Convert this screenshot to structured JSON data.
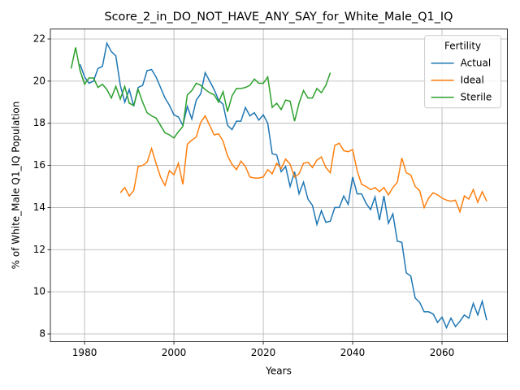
{
  "chart_data": {
    "type": "line",
    "title": "Score_2_in_DO_NOT_HAVE_ANY_SAY_for_White_Male_Q1_IQ",
    "xlabel": "Years",
    "ylabel": "% of White_Male Q1_IQ Population",
    "legend_title": "Fertility",
    "legend": "upper right",
    "grid": true,
    "x": [
      1977,
      1978,
      1979,
      1980,
      1981,
      1982,
      1983,
      1984,
      1985,
      1986,
      1987,
      1988,
      1989,
      1990,
      1991,
      1992,
      1993,
      1994,
      1995,
      1996,
      1997,
      1998,
      1999,
      2000,
      2001,
      2002,
      2003,
      2004,
      2005,
      2006,
      2007,
      2008,
      2009,
      2010,
      2011,
      2012,
      2013,
      2014,
      2015,
      2016,
      2017,
      2018,
      2019,
      2020,
      2021,
      2022,
      2023,
      2024,
      2025,
      2026,
      2027,
      2028,
      2029,
      2030,
      2031,
      2032,
      2033,
      2034,
      2035,
      2036,
      2037,
      2038,
      2039,
      2040,
      2041,
      2042,
      2043,
      2044,
      2045,
      2046,
      2047,
      2048,
      2049,
      2050,
      2051,
      2052,
      2053,
      2054,
      2055,
      2056,
      2057,
      2058,
      2059,
      2060,
      2061,
      2062,
      2063,
      2064,
      2065,
      2066,
      2067,
      2068,
      2069,
      2070
    ],
    "series": [
      {
        "name": "Actual",
        "color": "#1f77b4",
        "values": [
          null,
          null,
          20.8,
          20.2,
          19.9,
          20.0,
          20.6,
          20.7,
          21.8,
          21.4,
          21.2,
          19.8,
          19.0,
          19.6,
          18.8,
          19.7,
          19.8,
          20.5,
          20.55,
          20.2,
          19.7,
          19.2,
          18.85,
          18.4,
          18.3,
          17.9,
          18.8,
          18.2,
          19.1,
          19.4,
          20.4,
          20.0,
          19.6,
          19.1,
          18.9,
          17.9,
          17.7,
          18.1,
          18.1,
          18.75,
          18.35,
          18.5,
          18.15,
          18.4,
          18.0,
          16.55,
          16.5,
          15.7,
          15.95,
          15.0,
          15.7,
          14.65,
          15.2,
          14.4,
          14.1,
          13.2,
          13.85,
          13.3,
          13.35,
          14.0,
          14.0,
          14.55,
          14.15,
          15.45,
          14.65,
          14.65,
          14.2,
          13.9,
          14.5,
          13.4,
          14.55,
          13.25,
          13.7,
          12.4,
          12.35,
          10.9,
          10.75,
          9.7,
          9.5,
          9.05,
          9.05,
          8.95,
          8.55,
          8.8,
          8.3,
          8.75,
          8.35,
          8.6,
          8.9,
          8.75,
          9.45,
          8.9,
          9.55,
          8.65
        ]
      },
      {
        "name": "Ideal",
        "color": "#ff7f0e",
        "values": [
          null,
          null,
          null,
          null,
          null,
          null,
          null,
          null,
          null,
          null,
          null,
          14.7,
          14.95,
          14.55,
          14.8,
          15.95,
          16.0,
          16.15,
          16.8,
          16.1,
          15.45,
          15.05,
          15.75,
          15.55,
          16.1,
          15.1,
          17.0,
          17.2,
          17.35,
          18.05,
          18.35,
          17.9,
          17.45,
          17.5,
          17.15,
          16.45,
          16.05,
          15.8,
          16.2,
          15.95,
          15.45,
          15.4,
          15.4,
          15.45,
          15.8,
          15.6,
          16.1,
          15.85,
          16.3,
          16.05,
          15.45,
          15.6,
          16.1,
          16.15,
          15.9,
          16.25,
          16.4,
          15.9,
          15.65,
          16.95,
          17.05,
          16.7,
          16.65,
          16.75,
          15.75,
          15.1,
          15.0,
          14.85,
          14.95,
          14.75,
          14.95,
          14.6,
          14.95,
          15.2,
          16.35,
          15.65,
          15.55,
          15.0,
          14.8,
          14.0,
          14.45,
          14.7,
          14.6,
          14.45,
          14.35,
          14.3,
          14.35,
          13.8,
          14.55,
          14.4,
          14.85,
          14.25,
          14.75,
          14.3
        ]
      },
      {
        "name": "Sterile",
        "color": "#2ca02c",
        "values": [
          20.6,
          21.6,
          20.5,
          19.85,
          20.15,
          20.15,
          19.7,
          19.85,
          19.6,
          19.2,
          19.75,
          19.15,
          19.75,
          18.95,
          18.85,
          19.6,
          19.0,
          18.5,
          18.35,
          18.25,
          17.9,
          17.55,
          17.45,
          17.3,
          17.6,
          17.85,
          19.35,
          19.55,
          19.9,
          19.8,
          19.6,
          19.45,
          19.35,
          19.0,
          19.5,
          18.55,
          19.3,
          19.65,
          19.65,
          19.7,
          19.8,
          20.1,
          19.9,
          19.9,
          20.2,
          18.75,
          18.95,
          18.65,
          19.1,
          19.05,
          18.1,
          18.95,
          19.55,
          19.2,
          19.2,
          19.65,
          19.45,
          19.8,
          20.4,
          null,
          null,
          null,
          null,
          null,
          null,
          null,
          null,
          null,
          null,
          null,
          null,
          null,
          null,
          null,
          null,
          null,
          null,
          null,
          null,
          null,
          null,
          null,
          null,
          null,
          null,
          null,
          null,
          null,
          null,
          null,
          null,
          null,
          null,
          null
        ]
      }
    ],
    "xlim": [
      1972.35,
      2074.65
    ],
    "xticks": [
      1980,
      2000,
      2020,
      2040,
      2060
    ],
    "ylim": [
      7.63,
      22.47
    ],
    "yticks": [
      8,
      10,
      12,
      14,
      16,
      18,
      20,
      22
    ]
  }
}
